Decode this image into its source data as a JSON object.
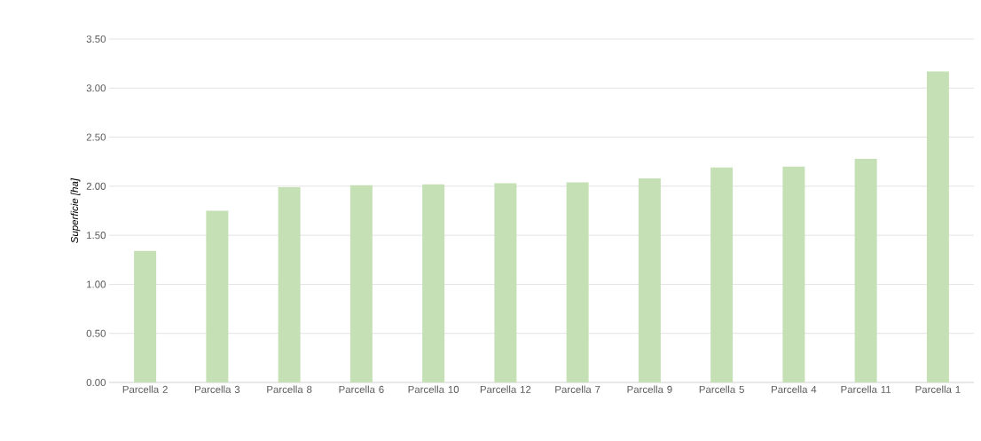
{
  "chart_data": {
    "type": "bar",
    "ylabel": "*Superficie [ha]*",
    "categories": [
      "Parcella 2",
      "Parcella 3",
      "Parcella 8",
      "Parcella 6",
      "Parcella 10",
      "Parcella 12",
      "Parcella 7",
      "Parcella 9",
      "Parcella 5",
      "Parcella 4",
      "Parcella 11",
      "Parcella 1"
    ],
    "values": [
      1.34,
      1.75,
      1.99,
      2.01,
      2.02,
      2.03,
      2.04,
      2.08,
      2.19,
      2.2,
      2.28,
      3.17
    ],
    "color": "#c5e0b4",
    "ylim": [
      0,
      3.5
    ],
    "yticks": [
      {
        "value": 0,
        "label": "0.00"
      },
      {
        "value": 0.5,
        "label": "0.50"
      },
      {
        "value": 1,
        "label": "1.00"
      },
      {
        "value": 1.5,
        "label": "1.50"
      },
      {
        "value": 2,
        "label": "2.00"
      },
      {
        "value": 2.5,
        "label": "2.50"
      },
      {
        "value": 3,
        "label": "3.00"
      },
      {
        "value": 3.5,
        "label": "3.50"
      }
    ],
    "grid": "y"
  }
}
